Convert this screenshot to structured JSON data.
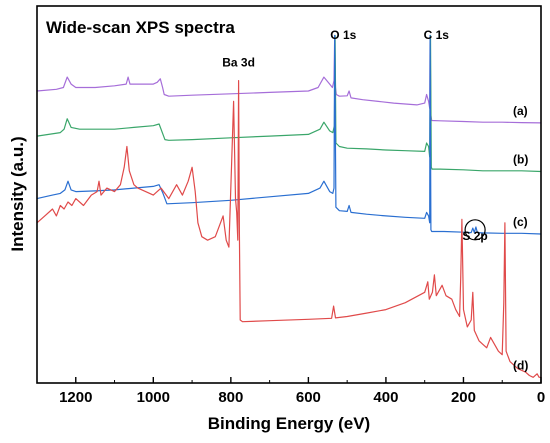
{
  "chart_data": {
    "type": "line",
    "title": "Wide-scan XPS spectra",
    "xlabel": "Binding Energy (eV)",
    "ylabel": "Intensity (a.u.)",
    "xlim": [
      1300,
      0
    ],
    "x_reversed": true,
    "xticks": [
      {
        "value": 1200,
        "label": "1200"
      },
      {
        "value": 1000,
        "label": "1000"
      },
      {
        "value": 800,
        "label": "800"
      },
      {
        "value": 600,
        "label": "600"
      },
      {
        "value": 400,
        "label": "400"
      },
      {
        "value": 200,
        "label": "200"
      },
      {
        "value": 0,
        "label": "0"
      }
    ],
    "ylim": [
      0,
      100
    ],
    "grid": false,
    "annotations": [
      {
        "text": "Ba 3d",
        "x": 780,
        "y": 90
      },
      {
        "text": "O 1s",
        "x": 510,
        "y": 98
      },
      {
        "text": "C 1s",
        "x": 270,
        "y": 98
      },
      {
        "text": "S 2p",
        "x": 170,
        "y": 40
      }
    ],
    "series": [
      {
        "name": "(a)",
        "color": "#a66ed9",
        "points": [
          [
            1300,
            83
          ],
          [
            1250,
            83.5
          ],
          [
            1232,
            84
          ],
          [
            1222,
            87
          ],
          [
            1212,
            85
          ],
          [
            1200,
            84
          ],
          [
            1150,
            84
          ],
          [
            1100,
            84.5
          ],
          [
            1070,
            85
          ],
          [
            1065,
            87
          ],
          [
            1060,
            85
          ],
          [
            1030,
            85
          ],
          [
            1000,
            85
          ],
          [
            990,
            85.5
          ],
          [
            982,
            86.5
          ],
          [
            976,
            84
          ],
          [
            972,
            82
          ],
          [
            960,
            81.5
          ],
          [
            900,
            81.8
          ],
          [
            800,
            82.2
          ],
          [
            700,
            82.6
          ],
          [
            600,
            83
          ],
          [
            575,
            84
          ],
          [
            560,
            87
          ],
          [
            545,
            85
          ],
          [
            538,
            84
          ],
          [
            534,
            86
          ],
          [
            532,
            99
          ],
          [
            530,
            84
          ],
          [
            528,
            82
          ],
          [
            520,
            81.5
          ],
          [
            500,
            81.6
          ],
          [
            495,
            83
          ],
          [
            490,
            81
          ],
          [
            460,
            80.5
          ],
          [
            420,
            80
          ],
          [
            380,
            79.5
          ],
          [
            320,
            79
          ],
          [
            300,
            79.5
          ],
          [
            295,
            82
          ],
          [
            290,
            80
          ],
          [
            287,
            78
          ],
          [
            286,
            99
          ],
          [
            284,
            76
          ],
          [
            282,
            74.5
          ],
          [
            260,
            74.4
          ],
          [
            200,
            74.2
          ],
          [
            150,
            74
          ],
          [
            100,
            74
          ],
          [
            50,
            73.9
          ],
          [
            0,
            73.8
          ]
        ]
      },
      {
        "name": "(b)",
        "color": "#3aa66a",
        "points": [
          [
            1300,
            70
          ],
          [
            1240,
            71
          ],
          [
            1230,
            72
          ],
          [
            1222,
            75
          ],
          [
            1212,
            72.5
          ],
          [
            1190,
            72
          ],
          [
            1150,
            72
          ],
          [
            1100,
            72
          ],
          [
            1050,
            72.5
          ],
          [
            1000,
            73
          ],
          [
            985,
            73.5
          ],
          [
            975,
            70.5
          ],
          [
            970,
            69
          ],
          [
            960,
            68.8
          ],
          [
            900,
            69
          ],
          [
            800,
            69.5
          ],
          [
            700,
            70
          ],
          [
            600,
            70.5
          ],
          [
            570,
            72
          ],
          [
            560,
            74
          ],
          [
            545,
            71.5
          ],
          [
            537,
            71
          ],
          [
            533,
            73
          ],
          [
            531,
            99
          ],
          [
            529,
            68
          ],
          [
            520,
            67
          ],
          [
            500,
            66.5
          ],
          [
            450,
            66.3
          ],
          [
            400,
            66
          ],
          [
            350,
            65.8
          ],
          [
            300,
            65.6
          ],
          [
            295,
            68
          ],
          [
            290,
            67
          ],
          [
            287,
            64
          ],
          [
            285,
            99
          ],
          [
            283,
            61
          ],
          [
            281,
            60.5
          ],
          [
            260,
            60.5
          ],
          [
            200,
            60.3
          ],
          [
            150,
            60
          ],
          [
            100,
            60
          ],
          [
            50,
            60
          ],
          [
            0,
            59.8
          ]
        ]
      },
      {
        "name": "(c)",
        "color": "#2a6fd1",
        "points": [
          [
            1300,
            52
          ],
          [
            1260,
            53
          ],
          [
            1240,
            53.5
          ],
          [
            1228,
            54.5
          ],
          [
            1220,
            57
          ],
          [
            1212,
            54.5
          ],
          [
            1200,
            54
          ],
          [
            1150,
            54.2
          ],
          [
            1100,
            54.5
          ],
          [
            1050,
            55
          ],
          [
            1000,
            55.5
          ],
          [
            985,
            56
          ],
          [
            975,
            53.5
          ],
          [
            965,
            50.5
          ],
          [
            900,
            50.8
          ],
          [
            800,
            51.5
          ],
          [
            700,
            52.5
          ],
          [
            600,
            53.5
          ],
          [
            570,
            55
          ],
          [
            560,
            57
          ],
          [
            545,
            54
          ],
          [
            537,
            53.5
          ],
          [
            534,
            55
          ],
          [
            532,
            99
          ],
          [
            529,
            49.5
          ],
          [
            520,
            48.5
          ],
          [
            500,
            48.3
          ],
          [
            495,
            50
          ],
          [
            490,
            48
          ],
          [
            450,
            47.5
          ],
          [
            400,
            47
          ],
          [
            350,
            46.6
          ],
          [
            300,
            46.3
          ],
          [
            295,
            48
          ],
          [
            290,
            47
          ],
          [
            287,
            45
          ],
          [
            286,
            99
          ],
          [
            284,
            43
          ],
          [
            282,
            42.5
          ],
          [
            250,
            42.5
          ],
          [
            200,
            42.3
          ],
          [
            180,
            42.2
          ],
          [
            176,
            43.5
          ],
          [
            172,
            42.2
          ],
          [
            168,
            43.8
          ],
          [
            164,
            42.2
          ],
          [
            150,
            42.1
          ],
          [
            100,
            42
          ],
          [
            50,
            42
          ],
          [
            0,
            41.8
          ]
        ]
      },
      {
        "name": "(d)",
        "color": "#e04a4a",
        "points": [
          [
            1300,
            45
          ],
          [
            1280,
            47
          ],
          [
            1260,
            49
          ],
          [
            1250,
            47
          ],
          [
            1240,
            50
          ],
          [
            1230,
            49
          ],
          [
            1220,
            51
          ],
          [
            1210,
            50
          ],
          [
            1200,
            52
          ],
          [
            1180,
            50
          ],
          [
            1160,
            53
          ],
          [
            1145,
            54
          ],
          [
            1140,
            57
          ],
          [
            1135,
            53
          ],
          [
            1120,
            55
          ],
          [
            1100,
            54
          ],
          [
            1085,
            56
          ],
          [
            1075,
            61
          ],
          [
            1068,
            67
          ],
          [
            1062,
            60
          ],
          [
            1050,
            56
          ],
          [
            1040,
            55
          ],
          [
            1020,
            54
          ],
          [
            1000,
            53
          ],
          [
            980,
            55
          ],
          [
            960,
            52
          ],
          [
            940,
            56
          ],
          [
            925,
            53
          ],
          [
            910,
            57
          ],
          [
            900,
            61
          ],
          [
            892,
            54
          ],
          [
            885,
            45
          ],
          [
            875,
            41
          ],
          [
            860,
            40
          ],
          [
            840,
            41
          ],
          [
            830,
            44
          ],
          [
            820,
            47
          ],
          [
            812,
            40
          ],
          [
            805,
            38
          ],
          [
            798,
            62
          ],
          [
            793,
            80
          ],
          [
            788,
            52
          ],
          [
            785,
            48
          ],
          [
            782,
            40
          ],
          [
            780,
            86
          ],
          [
            778,
            42
          ],
          [
            776,
            17
          ],
          [
            770,
            16.5
          ],
          [
            700,
            16.8
          ],
          [
            600,
            17.2
          ],
          [
            540,
            17.5
          ],
          [
            535,
            21
          ],
          [
            530,
            17.6
          ],
          [
            500,
            18
          ],
          [
            450,
            19
          ],
          [
            400,
            20
          ],
          [
            350,
            22
          ],
          [
            300,
            25
          ],
          [
            292,
            28
          ],
          [
            288,
            23
          ],
          [
            280,
            25
          ],
          [
            275,
            30
          ],
          [
            270,
            24
          ],
          [
            255,
            27
          ],
          [
            245,
            24
          ],
          [
            230,
            23
          ],
          [
            220,
            20
          ],
          [
            210,
            18
          ],
          [
            207,
            29
          ],
          [
            204,
            46
          ],
          [
            200,
            20
          ],
          [
            190,
            15
          ],
          [
            180,
            17
          ],
          [
            176,
            25
          ],
          [
            172,
            14
          ],
          [
            160,
            11
          ],
          [
            150,
            10
          ],
          [
            140,
            9
          ],
          [
            130,
            12
          ],
          [
            120,
            10
          ],
          [
            110,
            8
          ],
          [
            100,
            7
          ],
          [
            96,
            22
          ],
          [
            93,
            45
          ],
          [
            90,
            8
          ],
          [
            80,
            5
          ],
          [
            60,
            3
          ],
          [
            40,
            2
          ],
          [
            30,
            1
          ],
          [
            20,
            0.5
          ],
          [
            10,
            1.5
          ],
          [
            5,
            0.5
          ],
          [
            0,
            0.5
          ]
        ]
      }
    ],
    "series_labels": [
      "(a)",
      "(b)",
      "(c)",
      "(d)"
    ]
  }
}
